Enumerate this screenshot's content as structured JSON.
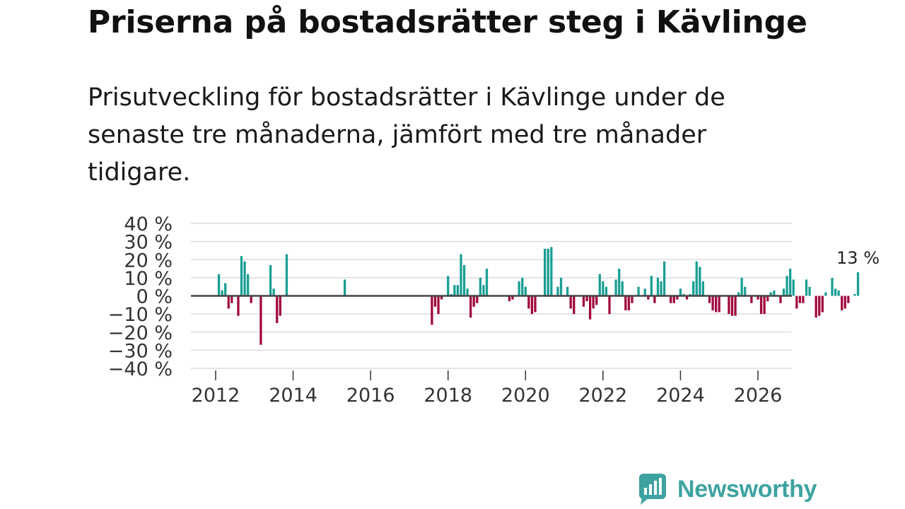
{
  "title": "Priserna på bostadsrätter steg i Kävlinge",
  "subtitle": "Prisutveckling för bostadsrätter i Kävlinge under de senaste tre månaderna, jämfört med tre månader tidigare.",
  "brand": "Newsworthy",
  "colors": {
    "positive": "#1a9e94",
    "negative": "#a0093f",
    "grid": "#dcdcdc",
    "zero": "#444444",
    "brand": "#3ea3a0"
  },
  "chart_data": {
    "type": "bar",
    "title": "Priserna på bostadsrätter steg i Kävlinge",
    "xlabel": "",
    "ylabel": "",
    "ylim": [
      -40,
      40
    ],
    "y_ticks": [
      40,
      30,
      20,
      10,
      0,
      -10,
      -20,
      -30,
      -40
    ],
    "y_tick_labels": [
      "40 %",
      "30 %",
      "20 %",
      "10 %",
      "0 %",
      "−10 %",
      "−20 %",
      "−30 %",
      "−40 %"
    ],
    "x_ticks": [
      2012,
      2014,
      2016,
      2018,
      2020,
      2022,
      2024,
      2026
    ],
    "x_tick_labels": [
      "2012",
      "2014",
      "2016",
      "2018",
      "2020",
      "2022",
      "2024",
      "2026"
    ],
    "start": {
      "year": 2012,
      "month": 1
    },
    "values": [
      null,
      12,
      3,
      7,
      -7,
      -4,
      null,
      -11,
      22,
      19,
      12,
      -4,
      null,
      null,
      -27,
      null,
      null,
      17,
      4,
      -15,
      -11,
      null,
      23,
      null,
      null,
      null,
      null,
      null,
      null,
      null,
      null,
      null,
      null,
      null,
      null,
      null,
      null,
      null,
      null,
      null,
      9,
      null,
      null,
      null,
      null,
      null,
      null,
      null,
      null,
      null,
      null,
      null,
      null,
      null,
      null,
      null,
      null,
      null,
      null,
      null,
      null,
      null,
      null,
      null,
      null,
      null,
      null,
      -16,
      -6,
      -10,
      -2,
      null,
      11,
      1,
      6,
      6,
      23,
      17,
      4,
      -12,
      -6,
      -4,
      10,
      6,
      15,
      null,
      null,
      null,
      null,
      null,
      null,
      -3,
      -2,
      null,
      8,
      10,
      5,
      -7,
      -10,
      -9,
      null,
      null,
      26,
      26,
      27,
      null,
      5,
      10,
      null,
      5,
      -7,
      -10,
      null,
      null,
      -6,
      -3,
      -13,
      -7,
      -5,
      12,
      8,
      5,
      -10,
      null,
      9,
      15,
      8,
      -8,
      -8,
      -4,
      null,
      5,
      null,
      4,
      -2,
      11,
      -4,
      10,
      8,
      19,
      null,
      -4,
      -4,
      -2,
      4,
      1,
      -2,
      1,
      8,
      19,
      16,
      8,
      null,
      -4,
      -8,
      -9,
      -9,
      null,
      0,
      -10,
      -11,
      -11,
      2,
      10,
      5,
      null,
      -4,
      0,
      -2,
      -10,
      -10,
      -3,
      2,
      3,
      null,
      -4,
      4,
      11,
      15,
      9,
      -7,
      -4,
      -4,
      9,
      5,
      null,
      -12,
      -11,
      -9,
      2,
      null,
      10,
      4,
      3,
      -8,
      -7,
      -4,
      null,
      1,
      13
    ],
    "last_value_label": "13 %"
  }
}
